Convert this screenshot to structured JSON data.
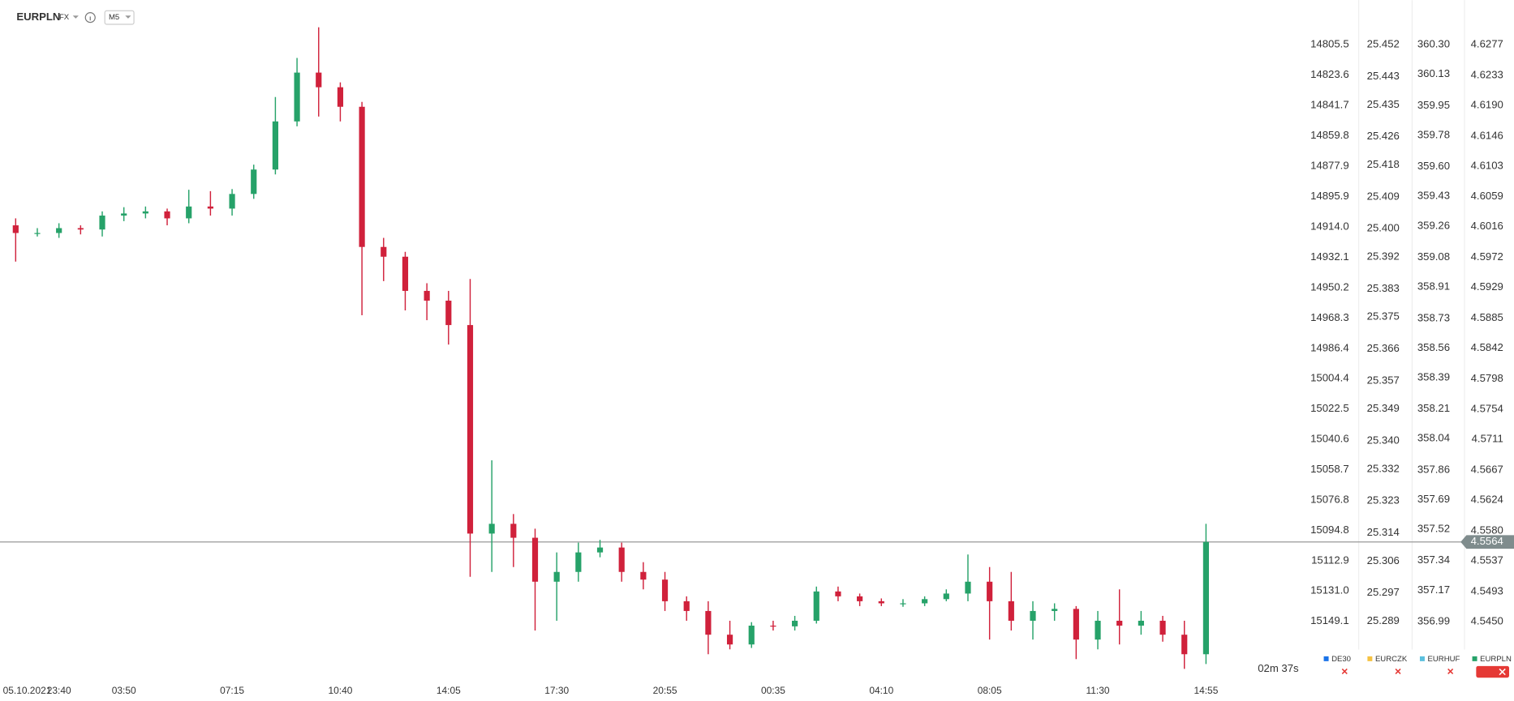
{
  "chart_data": {
    "type": "candlestick",
    "title": "EURPLN",
    "market": "FX",
    "interval": "M5",
    "countdown": "02m 37s",
    "date_label": "05.10.2021",
    "grid": false,
    "up_color": "#26a269",
    "down_color": "#d0213b",
    "last_price": 4.5564,
    "categories": [
      null,
      null,
      "23:40",
      null,
      null,
      "03:50",
      null,
      null,
      null,
      null,
      "07:15",
      null,
      null,
      null,
      null,
      "10:40",
      null,
      null,
      null,
      null,
      "14:05",
      null,
      null,
      null,
      null,
      "17:30",
      null,
      null,
      null,
      null,
      "20:55",
      null,
      null,
      null,
      null,
      "00:35",
      null,
      null,
      null,
      null,
      "04:10",
      null,
      null,
      null,
      null,
      "08:05",
      null,
      null,
      null,
      null,
      "11:30",
      null,
      null,
      null,
      null,
      "14:55"
    ],
    "series": [
      {
        "name": "DE30",
        "color": "#1a73e8",
        "ylim": [
          15183.2,
          14778.9
        ],
        "yticks": [
          14805.5,
          14823.6,
          14841.7,
          14859.8,
          14877.9,
          14895.9,
          {
            "value": 14914,
            "label": "14914.0"
          },
          14932.1,
          14950.2,
          14968.3,
          14986.4,
          15004.4,
          15022.5,
          15040.6,
          15058.7,
          15076.8,
          15094.8,
          15112.9,
          {
            "value": 15131,
            "label": "15131.0"
          },
          15149.1
        ]
      },
      {
        "name": "EURCZK",
        "color": "#f5c242",
        "ylim": [
          25.2728,
          25.4646
        ],
        "yticks": [
          25.452,
          25.443,
          25.435,
          25.426,
          25.418,
          25.409,
          {
            "value": 25.4,
            "label": "25.400"
          },
          25.392,
          25.383,
          25.375,
          25.366,
          25.357,
          25.349,
          {
            "value": 25.34,
            "label": "25.340"
          },
          25.332,
          25.323,
          25.314,
          25.306,
          25.297,
          25.289
        ]
      },
      {
        "name": "EURHUF",
        "color": "#5bc0de",
        "ylim": [
          356.663,
          360.556
        ],
        "yticks": [
          {
            "value": 360.3,
            "label": "360.30"
          },
          360.13,
          359.95,
          359.78,
          {
            "value": 359.6,
            "label": "359.60"
          },
          359.43,
          359.26,
          359.08,
          358.91,
          358.73,
          358.56,
          358.39,
          358.21,
          358.04,
          357.86,
          357.69,
          357.52,
          357.34,
          357.17,
          356.99
        ]
      },
      {
        "name": "EURPLN",
        "color": "#26a269",
        "ylim": [
          4.5368,
          4.6341
        ],
        "yticks": [
          4.6277,
          4.6233,
          {
            "value": 4.619,
            "label": "4.6190"
          },
          4.6146,
          4.6103,
          4.6059,
          4.6016,
          4.5972,
          4.5929,
          4.5885,
          4.5842,
          4.5798,
          4.5754,
          4.5711,
          4.5667,
          4.5624,
          {
            "value": 4.558,
            "label": "4.5580"
          },
          4.5537,
          4.5493,
          {
            "value": 4.545,
            "label": "4.5450"
          }
        ],
        "open": [
          4.6018,
          4.6007,
          4.6007,
          4.6014,
          4.6012,
          4.6032,
          4.6035,
          4.6038,
          4.6028,
          4.6045,
          4.6042,
          4.6063,
          4.6098,
          4.6167,
          4.6237,
          4.6216,
          4.6188,
          4.5987,
          4.5973,
          4.5924,
          4.591,
          4.5875,
          4.5576,
          4.559,
          4.557,
          4.5507,
          4.5521,
          4.5549,
          4.5556,
          4.5521,
          4.551,
          4.5479,
          4.5465,
          4.5431,
          4.5417,
          4.5444,
          4.5443,
          4.5451,
          4.5493,
          4.5486,
          4.5479,
          4.5476,
          4.5476,
          4.5482,
          4.549,
          4.5507,
          4.5479,
          4.5451,
          4.5465,
          4.5468,
          4.5424,
          4.5451,
          4.5444,
          4.5451,
          4.5431,
          4.5403
        ],
        "high": [
          4.6028,
          4.6014,
          4.6021,
          4.6018,
          4.6038,
          4.6044,
          4.6045,
          4.6042,
          4.6069,
          4.6067,
          4.607,
          4.6105,
          4.6202,
          4.6258,
          4.6302,
          4.6223,
          4.6195,
          4.6,
          4.598,
          4.5935,
          4.5924,
          4.5941,
          4.5681,
          4.5604,
          4.5583,
          4.5549,
          4.5563,
          4.5567,
          4.5563,
          4.5535,
          4.5521,
          4.5486,
          4.5479,
          4.5451,
          4.5449,
          4.5451,
          4.5458,
          4.55,
          4.55,
          4.549,
          4.5483,
          4.5482,
          4.5486,
          4.5496,
          4.5546,
          4.5528,
          4.5521,
          4.5479,
          4.5476,
          4.5472,
          4.5465,
          4.5496,
          4.5465,
          4.5458,
          4.5451,
          4.559
        ],
        "low": [
          4.5966,
          4.6002,
          4.6,
          4.6005,
          4.6002,
          4.6024,
          4.6028,
          4.6018,
          4.6021,
          4.6032,
          4.6032,
          4.6056,
          4.6091,
          4.616,
          4.6174,
          4.6167,
          4.5889,
          4.5938,
          4.5896,
          4.5882,
          4.5847,
          4.5514,
          4.5521,
          4.5528,
          4.5437,
          4.5451,
          4.5507,
          4.5542,
          4.5507,
          4.5496,
          4.5465,
          4.5451,
          4.5403,
          4.541,
          4.5412,
          4.5437,
          4.5437,
          4.5447,
          4.5479,
          4.5472,
          4.5472,
          4.5471,
          4.5472,
          4.5479,
          4.5479,
          4.5424,
          4.5437,
          4.5424,
          4.5451,
          4.5396,
          4.541,
          4.5417,
          4.5431,
          4.5421,
          4.5382,
          4.5389
        ],
        "close": [
          4.6007,
          4.6007,
          4.6014,
          4.6012,
          4.6032,
          4.6035,
          4.6038,
          4.6028,
          4.6045,
          4.6042,
          4.6063,
          4.6098,
          4.6167,
          4.6237,
          4.6216,
          4.6188,
          4.5987,
          4.5973,
          4.5924,
          4.591,
          4.5875,
          4.5576,
          4.559,
          4.557,
          4.5507,
          4.5521,
          4.5549,
          4.5556,
          4.5521,
          4.551,
          4.5479,
          4.5465,
          4.5431,
          4.5417,
          4.5444,
          4.5443,
          4.5451,
          4.5493,
          4.5486,
          4.5479,
          4.5476,
          4.5476,
          4.5482,
          4.549,
          4.5507,
          4.5479,
          4.5451,
          4.5465,
          4.5468,
          4.5424,
          4.5451,
          4.5444,
          4.5451,
          4.5431,
          4.5403,
          4.5564
        ]
      }
    ]
  }
}
